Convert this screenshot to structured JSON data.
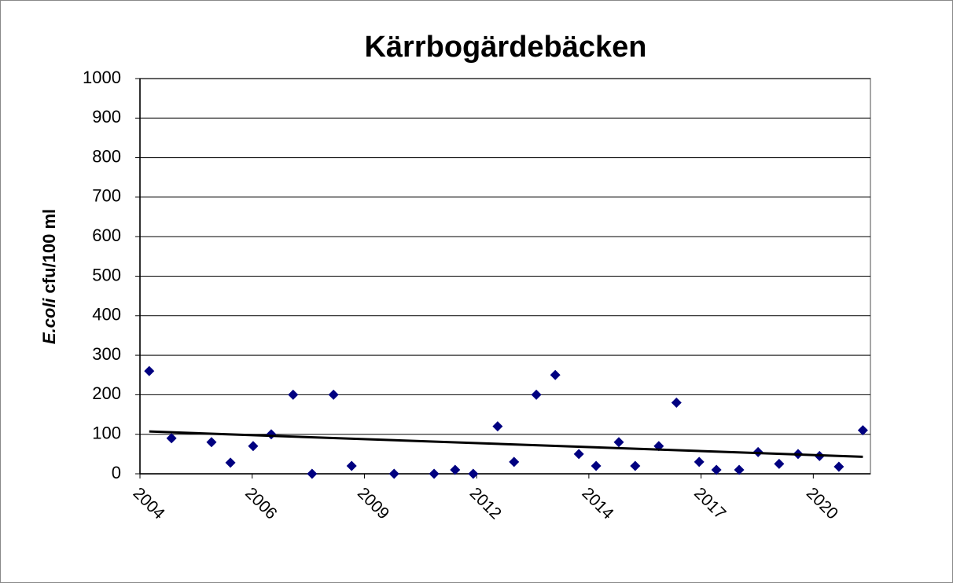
{
  "chart_data": {
    "type": "scatter",
    "title": "Kärrbogärdebäcken",
    "y_label": {
      "italic": "E.coli",
      "text": "cfu/100 ml"
    },
    "x": [
      2004.32,
      2004.85,
      2005.8,
      2006.25,
      2006.79,
      2007.22,
      2007.74,
      2008.19,
      2008.7,
      2009.13,
      2010.14,
      2011.09,
      2011.59,
      2012.02,
      2012.6,
      2012.99,
      2013.52,
      2013.97,
      2014.53,
      2014.94,
      2015.48,
      2015.87,
      2016.43,
      2016.85,
      2017.39,
      2017.8,
      2018.34,
      2018.79,
      2019.29,
      2019.74,
      2020.25,
      2020.71,
      2021.28
    ],
    "values": [
      260,
      90,
      80,
      28,
      70,
      100,
      200,
      0,
      200,
      20,
      0,
      0,
      10,
      0,
      120,
      30,
      200,
      250,
      50,
      20,
      80,
      20,
      70,
      180,
      30,
      10,
      10,
      55,
      25,
      50,
      45,
      18,
      110
    ],
    "color": "#000080",
    "trendline": {
      "x": [
        2004.32,
        2021.28
      ],
      "values": [
        107,
        43
      ],
      "color": "#000000"
    },
    "xlim": [
      2004.1,
      2021.46
    ],
    "xticks": [
      {
        "value": 2004.1,
        "label": "2004"
      },
      {
        "value": 2006.767,
        "label": "2006"
      },
      {
        "value": 2009.434,
        "label": "2009"
      },
      {
        "value": 2012.101,
        "label": "2012"
      },
      {
        "value": 2014.768,
        "label": "2014"
      },
      {
        "value": 2017.435,
        "label": "2017"
      },
      {
        "value": 2020.102,
        "label": "2020"
      }
    ],
    "ylim": [
      0,
      1000
    ],
    "yticks": [
      0,
      100,
      200,
      300,
      400,
      500,
      600,
      700,
      800,
      900,
      1000
    ],
    "grid": true
  }
}
